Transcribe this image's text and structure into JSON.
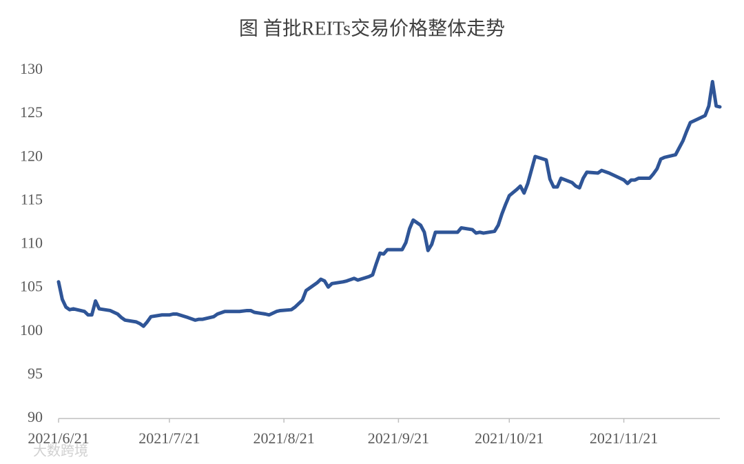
{
  "chart_data": {
    "type": "line",
    "title": "图 首批REITs交易价格整体走势",
    "x": [
      "2021/6/21",
      "2021/6/22",
      "2021/6/23",
      "2021/6/24",
      "2021/6/25",
      "2021/6/28",
      "2021/6/29",
      "2021/6/30",
      "2021/7/1",
      "2021/7/2",
      "2021/7/5",
      "2021/7/7",
      "2021/7/8",
      "2021/7/9",
      "2021/7/12",
      "2021/7/13",
      "2021/7/14",
      "2021/7/15",
      "2021/7/16",
      "2021/7/19",
      "2021/7/21",
      "2021/7/22",
      "2021/7/23",
      "2021/7/26",
      "2021/7/28",
      "2021/7/29",
      "2021/7/30",
      "2021/8/2",
      "2021/8/3",
      "2021/8/5",
      "2021/8/9",
      "2021/8/11",
      "2021/8/12",
      "2021/8/13",
      "2021/8/16",
      "2021/8/17",
      "2021/8/19",
      "2021/8/20",
      "2021/8/23",
      "2021/8/24",
      "2021/8/26",
      "2021/8/27",
      "2021/8/30",
      "2021/8/31",
      "2021/9/1",
      "2021/9/2",
      "2021/9/3",
      "2021/9/6",
      "2021/9/7",
      "2021/9/9",
      "2021/9/10",
      "2021/9/13",
      "2021/9/14",
      "2021/9/15",
      "2021/9/16",
      "2021/9/17",
      "2021/9/18",
      "2021/9/20",
      "2021/9/22",
      "2021/9/23",
      "2021/9/24",
      "2021/9/25",
      "2021/9/27",
      "2021/9/28",
      "2021/9/29",
      "2021/9/30",
      "2021/10/1",
      "2021/10/7",
      "2021/10/8",
      "2021/10/11",
      "2021/10/12",
      "2021/10/13",
      "2021/10/14",
      "2021/10/17",
      "2021/10/18",
      "2021/10/19",
      "2021/10/20",
      "2021/10/21",
      "2021/10/23",
      "2021/10/24",
      "2021/10/25",
      "2021/10/26",
      "2021/10/28",
      "2021/10/31",
      "2021/11/1",
      "2021/11/2",
      "2021/11/3",
      "2021/11/4",
      "2021/11/7",
      "2021/11/8",
      "2021/11/9",
      "2021/11/10",
      "2021/11/11",
      "2021/11/14",
      "2021/11/15",
      "2021/11/17",
      "2021/11/18",
      "2021/11/21",
      "2021/11/22",
      "2021/11/23",
      "2021/11/24",
      "2021/11/25",
      "2021/11/28",
      "2021/11/29",
      "2021/11/30",
      "2021/12/1",
      "2021/12/2",
      "2021/12/5",
      "2021/12/6",
      "2021/12/7",
      "2021/12/8",
      "2021/12/9",
      "2021/12/11",
      "2021/12/13",
      "2021/12/14",
      "2021/12/15",
      "2021/12/16",
      "2021/12/17"
    ],
    "series": [
      {
        "color": "#2f5597",
        "values": [
          105.7,
          103.7,
          102.8,
          102.5,
          102.6,
          102.3,
          101.9,
          101.9,
          103.5,
          102.6,
          102.4,
          102.0,
          101.6,
          101.3,
          101.1,
          100.9,
          100.6,
          101.1,
          101.7,
          101.9,
          101.9,
          102.0,
          102.0,
          101.6,
          101.3,
          101.4,
          101.4,
          101.7,
          102.0,
          102.3,
          102.3,
          102.4,
          102.4,
          102.2,
          102.0,
          101.9,
          102.3,
          102.4,
          102.5,
          102.8,
          103.6,
          104.7,
          105.6,
          106.0,
          105.8,
          105.1,
          105.5,
          105.7,
          105.8,
          106.1,
          105.9,
          106.3,
          106.5,
          107.8,
          109.0,
          108.9,
          109.4,
          109.4,
          109.4,
          110.2,
          111.8,
          112.8,
          112.2,
          111.4,
          109.3,
          110.0,
          111.4,
          111.4,
          111.9,
          111.7,
          111.3,
          111.4,
          111.3,
          111.5,
          112.2,
          113.5,
          114.6,
          115.6,
          116.3,
          116.7,
          115.9,
          117.0,
          120.1,
          119.7,
          117.5,
          116.6,
          116.6,
          117.6,
          117.1,
          116.7,
          116.5,
          117.6,
          118.3,
          118.2,
          118.5,
          118.2,
          118.0,
          117.4,
          117.0,
          117.4,
          117.4,
          117.6,
          117.6,
          118.1,
          118.7,
          119.8,
          120.0,
          120.3,
          121.1,
          121.9,
          123.0,
          124.0,
          124.4,
          124.8,
          125.9,
          128.7,
          125.9,
          125.8
        ]
      }
    ],
    "xlim": [
      "2021/6/21",
      "2021/12/17"
    ],
    "xticks": [
      "2021/6/21",
      "2021/7/21",
      "2021/8/21",
      "2021/9/21",
      "2021/10/21",
      "2021/11/21"
    ],
    "ylim": [
      90,
      130
    ],
    "yticks": [
      90,
      95,
      100,
      105,
      110,
      115,
      120,
      125,
      130
    ],
    "grid": false,
    "watermark": "大数跨境"
  }
}
